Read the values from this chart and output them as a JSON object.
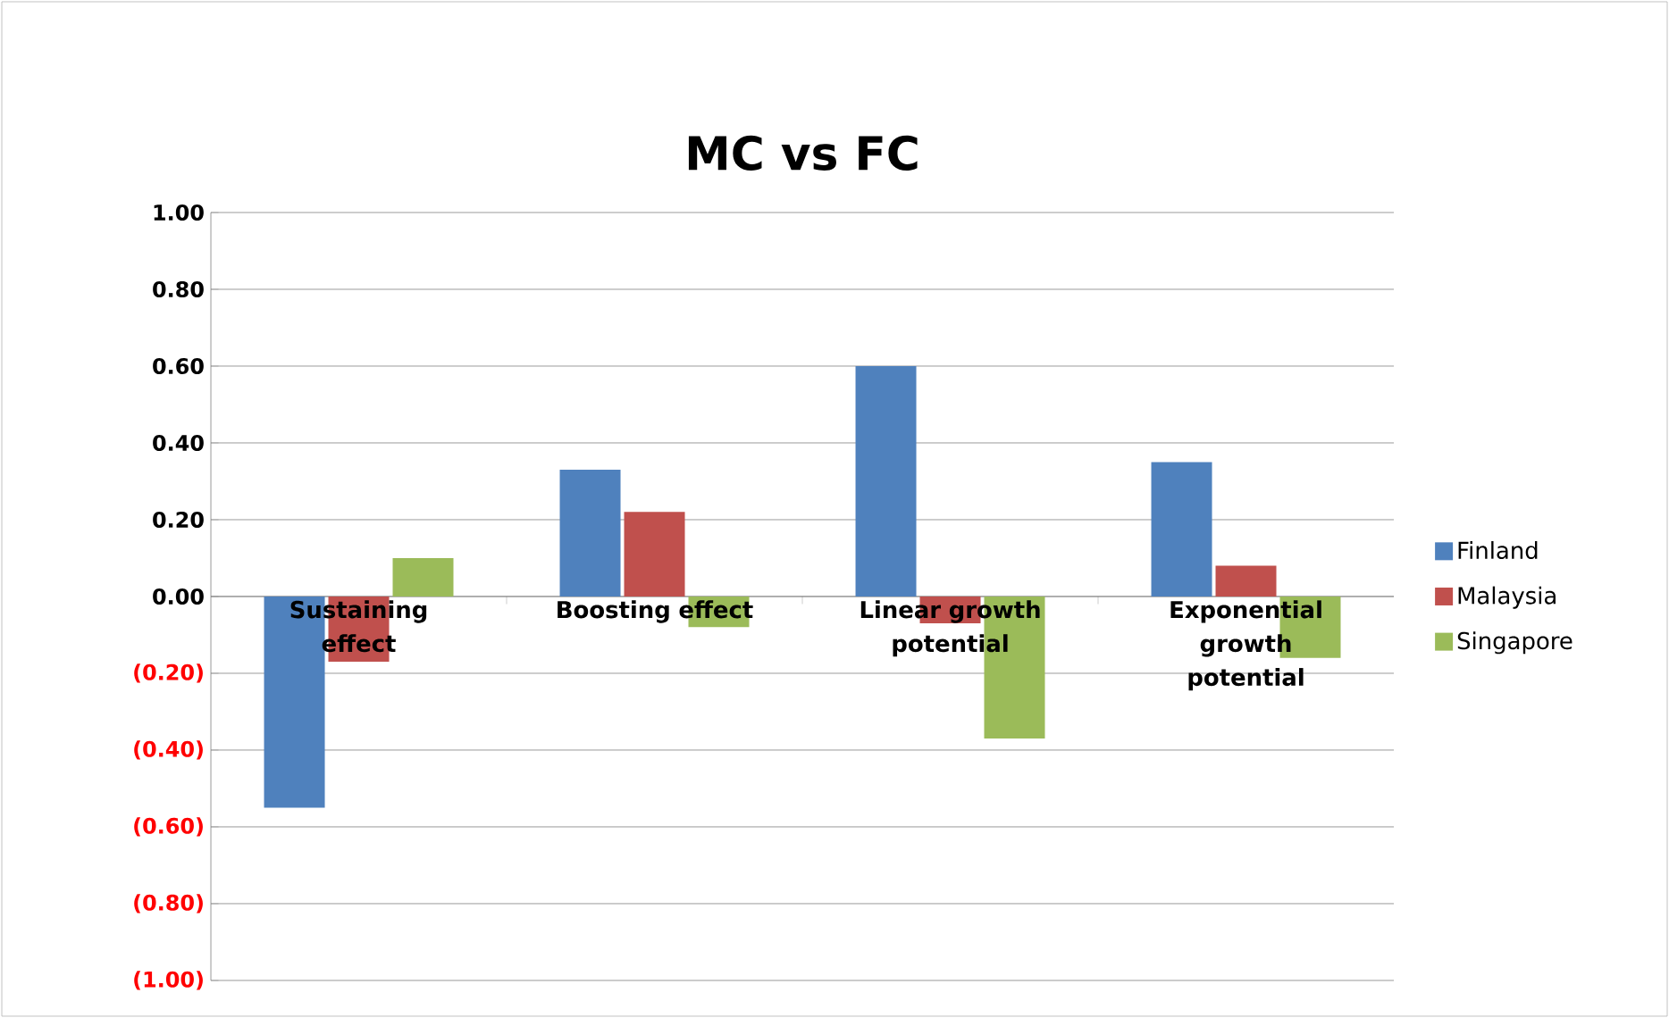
{
  "chart_data": {
    "type": "bar",
    "title": "MC vs FC",
    "categories": [
      "Sustaining effect",
      "Boosting effect",
      "Linear growth potential",
      "Exponential growth potential"
    ],
    "series": [
      {
        "name": "Finland",
        "color": "#4f81bd",
        "values": [
          -0.55,
          0.33,
          0.6,
          0.35
        ]
      },
      {
        "name": "Malaysia",
        "color": "#c0504d",
        "values": [
          -0.17,
          0.22,
          -0.07,
          0.08
        ]
      },
      {
        "name": "Singapore",
        "color": "#9bbb59",
        "values": [
          0.1,
          -0.08,
          -0.37,
          -0.16
        ]
      }
    ],
    "ylim": [
      -1,
      1
    ],
    "yticks": [
      {
        "value": -1,
        "label": "(1.00)"
      },
      {
        "value": -0.8,
        "label": "(0.80)"
      },
      {
        "value": -0.6,
        "label": "(0.60)"
      },
      {
        "value": -0.4,
        "label": "(0.40)"
      },
      {
        "value": -0.2,
        "label": "(0.20)"
      },
      {
        "value": 0,
        "label": "0.00"
      },
      {
        "value": 0.2,
        "label": "0.20"
      },
      {
        "value": 0.4,
        "label": "0.40"
      },
      {
        "value": 0.6,
        "label": "0.60"
      },
      {
        "value": 0.8,
        "label": "0.80"
      },
      {
        "value": 1,
        "label": "1.00"
      }
    ],
    "grid": "y",
    "legend": "right"
  }
}
